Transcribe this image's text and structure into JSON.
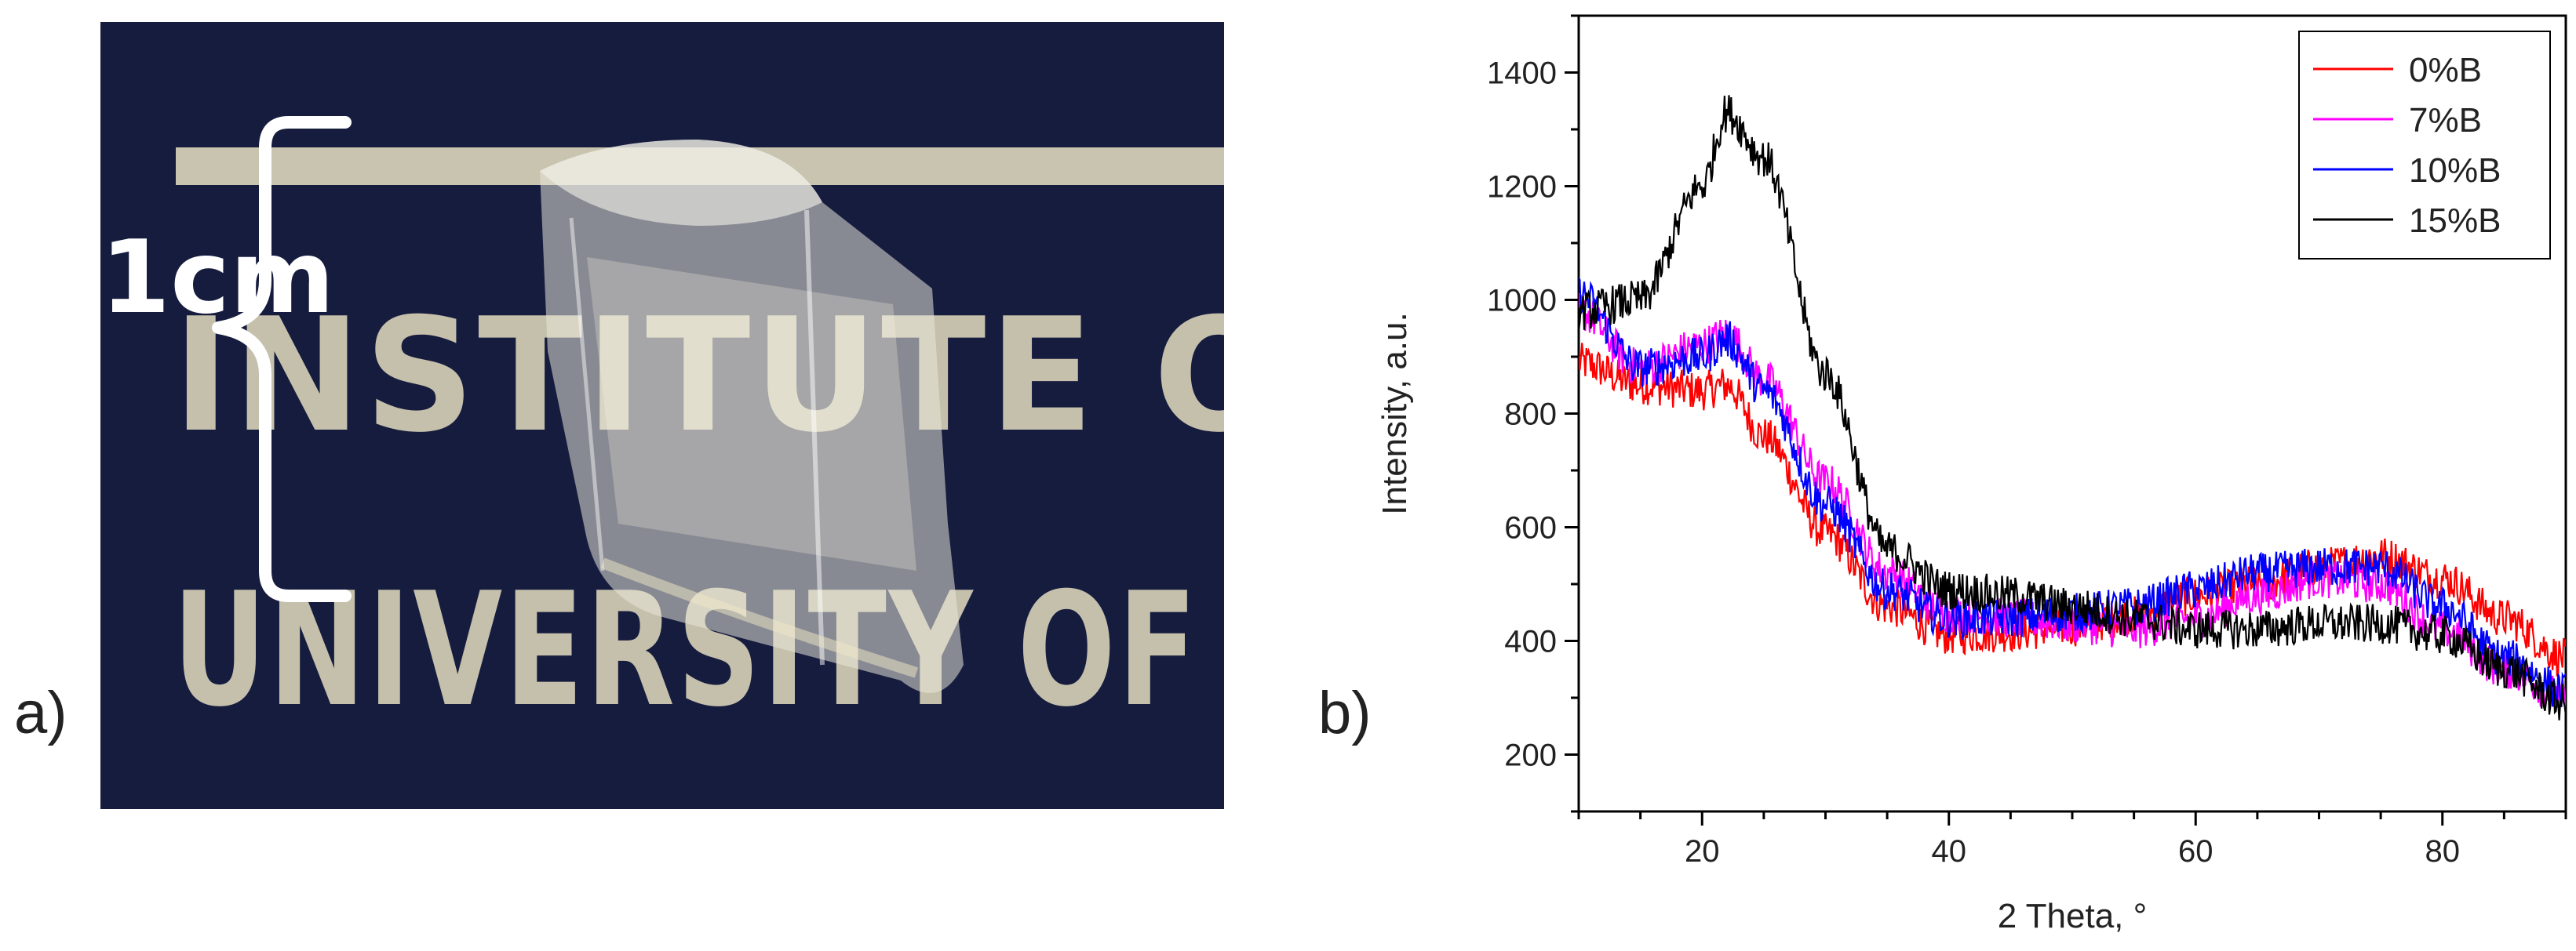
{
  "panels": {
    "a_label": "a)",
    "b_label": "b)"
  },
  "photo": {
    "scale_label": "1cm",
    "background_text_line1": "INSTITUTE O",
    "background_text_line2": "UNIVERSITY OF I",
    "colors": {
      "background": "#141a3a",
      "text": "#d8d2b8",
      "bracket": "#ffffff"
    }
  },
  "chart_data": {
    "type": "line",
    "title": "",
    "xlabel": "2 Theta, °",
    "ylabel": "Intensity, a.u.",
    "xlim": [
      10,
      90
    ],
    "ylim": [
      100,
      1500
    ],
    "xticks": [
      20,
      40,
      60,
      80
    ],
    "yticks": [
      200,
      400,
      600,
      800,
      1000,
      1200,
      1400
    ],
    "grid": false,
    "legend_position": "top-right",
    "x": [
      10,
      15,
      20,
      22,
      25,
      30,
      35,
      40,
      45,
      50,
      55,
      60,
      65,
      70,
      75,
      80,
      85,
      90
    ],
    "series": [
      {
        "name": "0%B",
        "color": "#ff0000",
        "values": [
          890,
          850,
          840,
          850,
          760,
          590,
          460,
          410,
          415,
          425,
          445,
          480,
          500,
          530,
          550,
          510,
          440,
          370
        ]
      },
      {
        "name": "7%B",
        "color": "#ff00ff",
        "values": [
          980,
          880,
          920,
          940,
          860,
          680,
          520,
          450,
          440,
          430,
          420,
          440,
          480,
          510,
          500,
          420,
          350,
          300
        ]
      },
      {
        "name": "10%B",
        "color": "#0000ff",
        "values": [
          1010,
          880,
          900,
          930,
          840,
          640,
          490,
          440,
          440,
          450,
          460,
          490,
          520,
          530,
          530,
          460,
          370,
          310
        ]
      },
      {
        "name": "15%B",
        "color": "#000000",
        "values": [
          980,
          1000,
          1200,
          1330,
          1250,
          870,
          560,
          490,
          480,
          460,
          440,
          420,
          420,
          430,
          430,
          410,
          350,
          290
        ]
      }
    ]
  }
}
